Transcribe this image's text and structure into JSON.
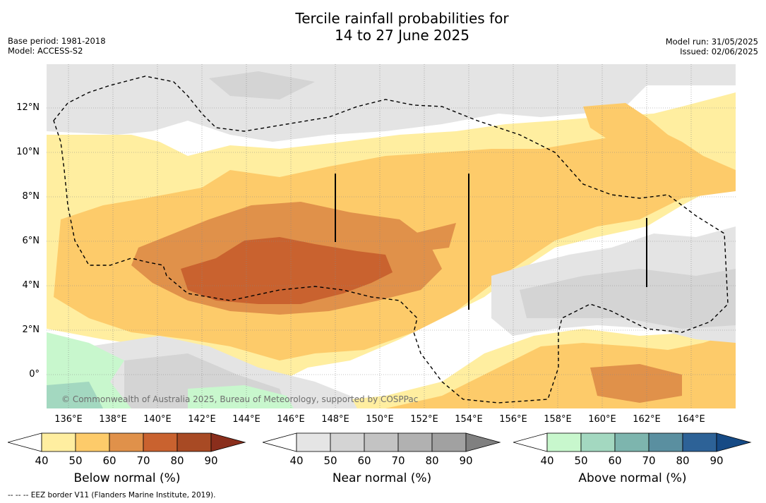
{
  "title_line1": "Tercile rainfall probabilities for",
  "title_line2": "14 to 27 June 2025",
  "meta_left": {
    "base_period": "Base period: 1981-2018",
    "model": "Model: ACCESS-S2"
  },
  "meta_right": {
    "model_run": "Model run: 31/05/2025",
    "issued": "Issued: 02/06/2025"
  },
  "credit": "© Commonwealth of Australia 2025, Bureau of Meteorology, supported by COSPPac",
  "lat_labels": [
    "12°N",
    "10°N",
    "8°N",
    "6°N",
    "4°N",
    "2°N",
    "0°"
  ],
  "lon_labels": [
    "136°E",
    "138°E",
    "140°E",
    "142°E",
    "144°E",
    "146°E",
    "148°E",
    "150°E",
    "152°E",
    "154°E",
    "156°E",
    "158°E",
    "160°E",
    "162°E",
    "164°E"
  ],
  "colorbars": [
    {
      "name": "below",
      "title": "Below normal (%)",
      "ticks": [
        "40",
        "50",
        "60",
        "70",
        "80",
        "90"
      ],
      "colors": [
        "#ffffff",
        "#ffeea0",
        "#fdcb6a",
        "#e0914a",
        "#c9622f",
        "#a84a24",
        "#8a2e1c"
      ]
    },
    {
      "name": "near",
      "title": "Near normal (%)",
      "ticks": [
        "40",
        "50",
        "60",
        "70",
        "80",
        "90"
      ],
      "colors": [
        "#ffffff",
        "#e5e5e5",
        "#d4d4d4",
        "#c3c3c3",
        "#b1b1b1",
        "#a1a1a1",
        "#808080"
      ]
    },
    {
      "name": "above",
      "title": "Above normal (%)",
      "ticks": [
        "40",
        "50",
        "60",
        "70",
        "80",
        "90"
      ],
      "colors": [
        "#ffffff",
        "#c8f7cd",
        "#a3d8c0",
        "#7db5ae",
        "#5a8fa0",
        "#2d6297",
        "#164a85"
      ]
    }
  ],
  "footer": "--  --  -- EEZ border V11 (Flanders Marine Institute, 2019)."
}
